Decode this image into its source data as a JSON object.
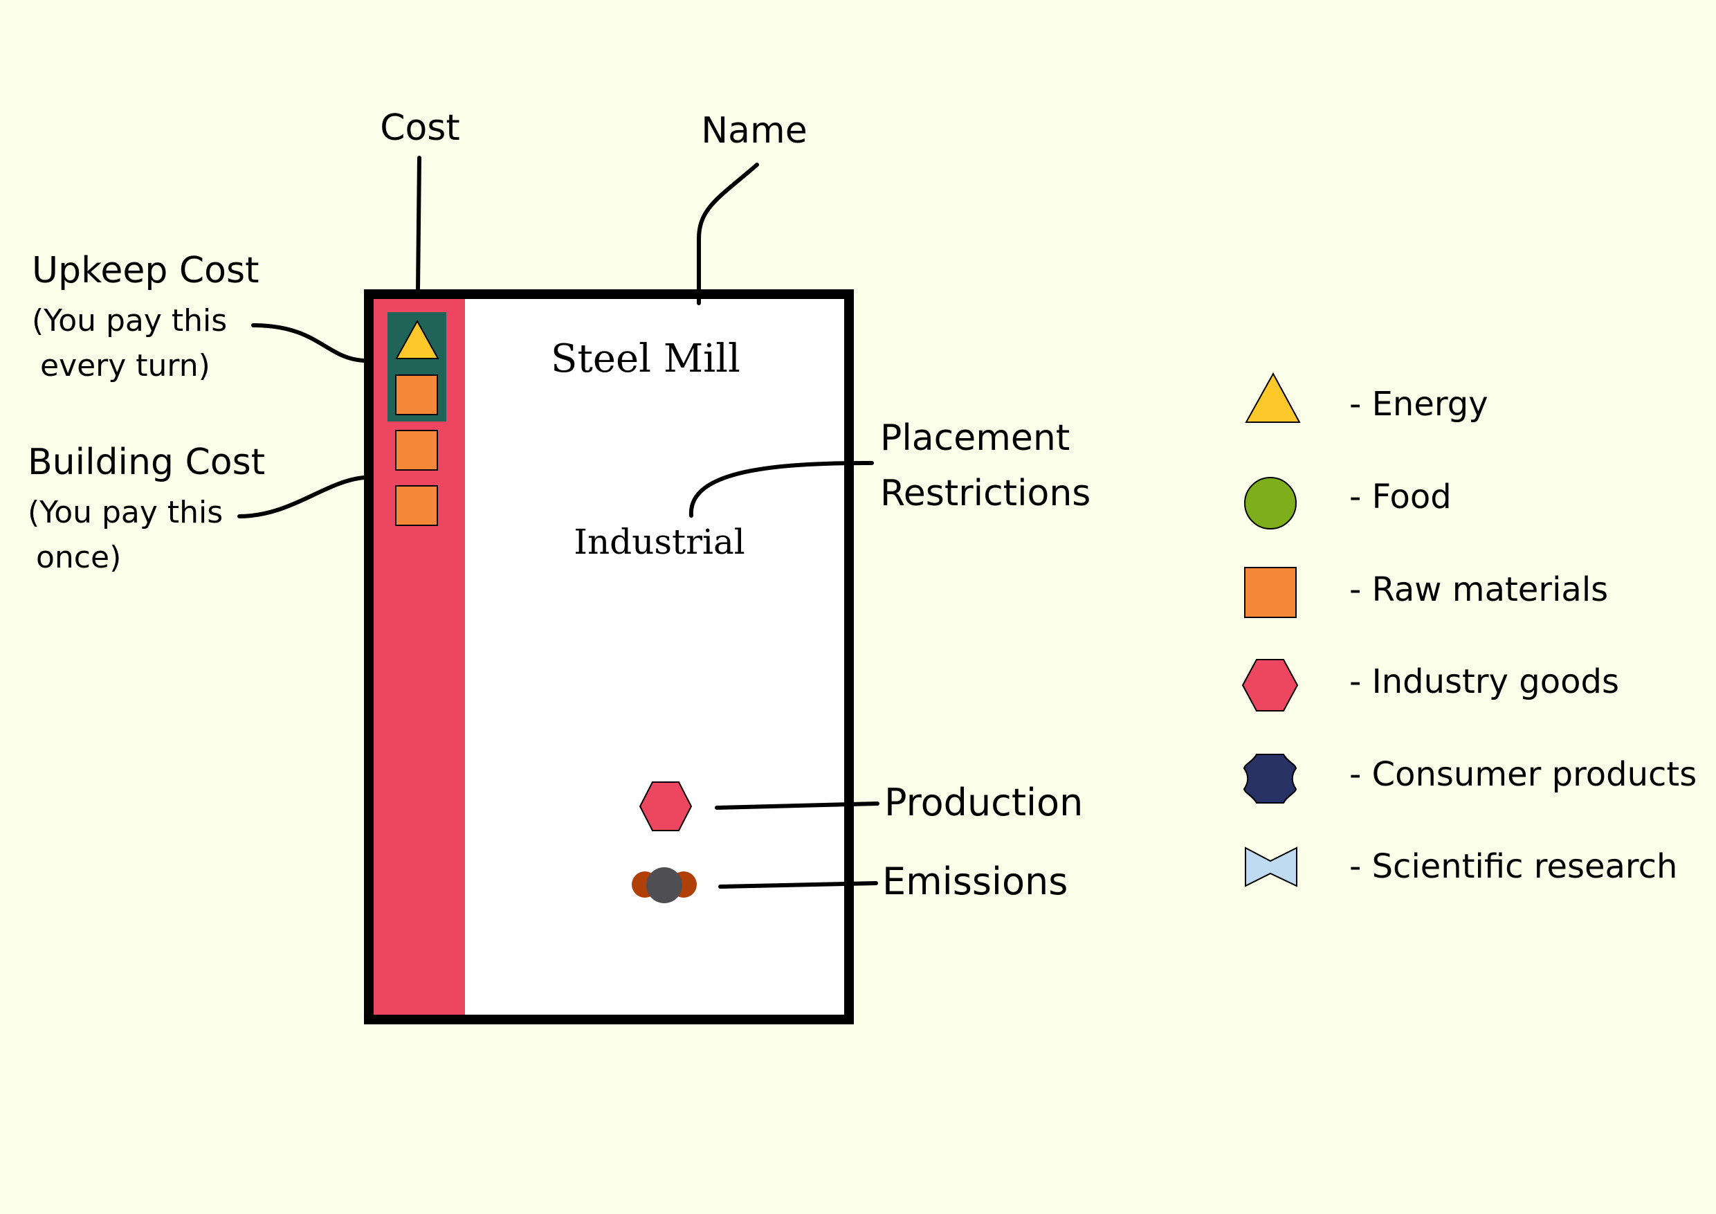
{
  "card": {
    "name": "Steel Mill",
    "placement": "Industrial",
    "sidebar_color": "#ed4660",
    "upkeep_box_color": "#206358",
    "upkeep_cost": [
      "energy",
      "raw-materials"
    ],
    "building_cost": [
      "raw-materials",
      "raw-materials"
    ],
    "production": [
      "industry-goods"
    ],
    "emissions": [
      "emissions-icon"
    ]
  },
  "callouts": {
    "cost": "Cost",
    "name": "Name",
    "upkeep_title": "Upkeep Cost",
    "upkeep_line1": "(You pay this",
    "upkeep_line2": "every turn)",
    "building_title": "Building Cost",
    "building_line1": "(You pay this",
    "building_line2": "once)",
    "placement_line1": "Placement",
    "placement_line2": "Restrictions",
    "production": "Production",
    "emissions": "Emissions"
  },
  "legend": [
    {
      "icon": "energy-icon",
      "label": "- Energy",
      "color": "#fdc82a"
    },
    {
      "icon": "food-icon",
      "label": "- Food",
      "color": "#7fae1c"
    },
    {
      "icon": "raw-materials-icon",
      "label": "- Raw materials",
      "color": "#f58838"
    },
    {
      "icon": "industry-goods-icon",
      "label": "- Industry goods",
      "color": "#ed4660"
    },
    {
      "icon": "consumer-products-icon",
      "label": "- Consumer products",
      "color": "#283264"
    },
    {
      "icon": "scientific-research-icon",
      "label": "- Scientific research",
      "color": "#bfdbf1"
    }
  ]
}
